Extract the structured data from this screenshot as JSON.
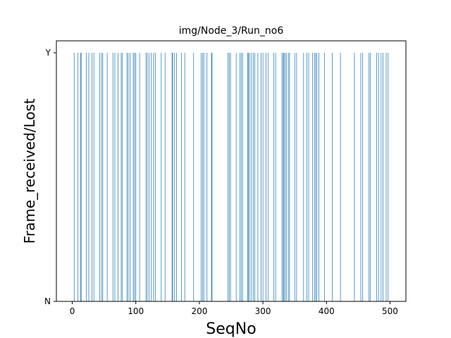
{
  "chart_data": {
    "type": "bar",
    "title": "img/Node_3/Run_no6",
    "xlabel": "SeqNo",
    "ylabel": "Frame_received/Lost",
    "xlim": [
      -25,
      525
    ],
    "xticks": [
      0,
      100,
      200,
      300,
      400,
      500
    ],
    "yticks": [
      "N",
      "Y"
    ],
    "ylim": [
      0,
      1
    ],
    "bar_color": "#1f77b4",
    "grid": false,
    "series": [
      {
        "values_at_received": "Y",
        "received_seqnos": [
          3,
          9,
          13,
          14,
          22,
          26,
          31,
          34,
          43,
          46,
          48,
          55,
          64,
          67,
          72,
          77,
          79,
          86,
          88,
          91,
          96,
          98,
          100,
          106,
          116,
          118,
          121,
          124,
          128,
          131,
          140,
          146,
          157,
          158,
          161,
          164,
          172,
          177,
          191,
          203,
          205,
          207,
          212,
          219,
          220,
          245,
          247,
          249,
          258,
          264,
          266,
          268,
          276,
          277,
          279,
          282,
          285,
          287,
          292,
          297,
          300,
          305,
          308,
          317,
          320,
          330,
          332,
          333,
          335,
          337,
          340,
          342,
          350,
          353,
          364,
          369,
          372,
          378,
          381,
          383,
          385,
          388,
          397,
          409,
          422,
          444,
          454,
          457,
          467,
          469,
          479,
          482,
          486,
          489,
          494,
          497
        ]
      }
    ]
  }
}
